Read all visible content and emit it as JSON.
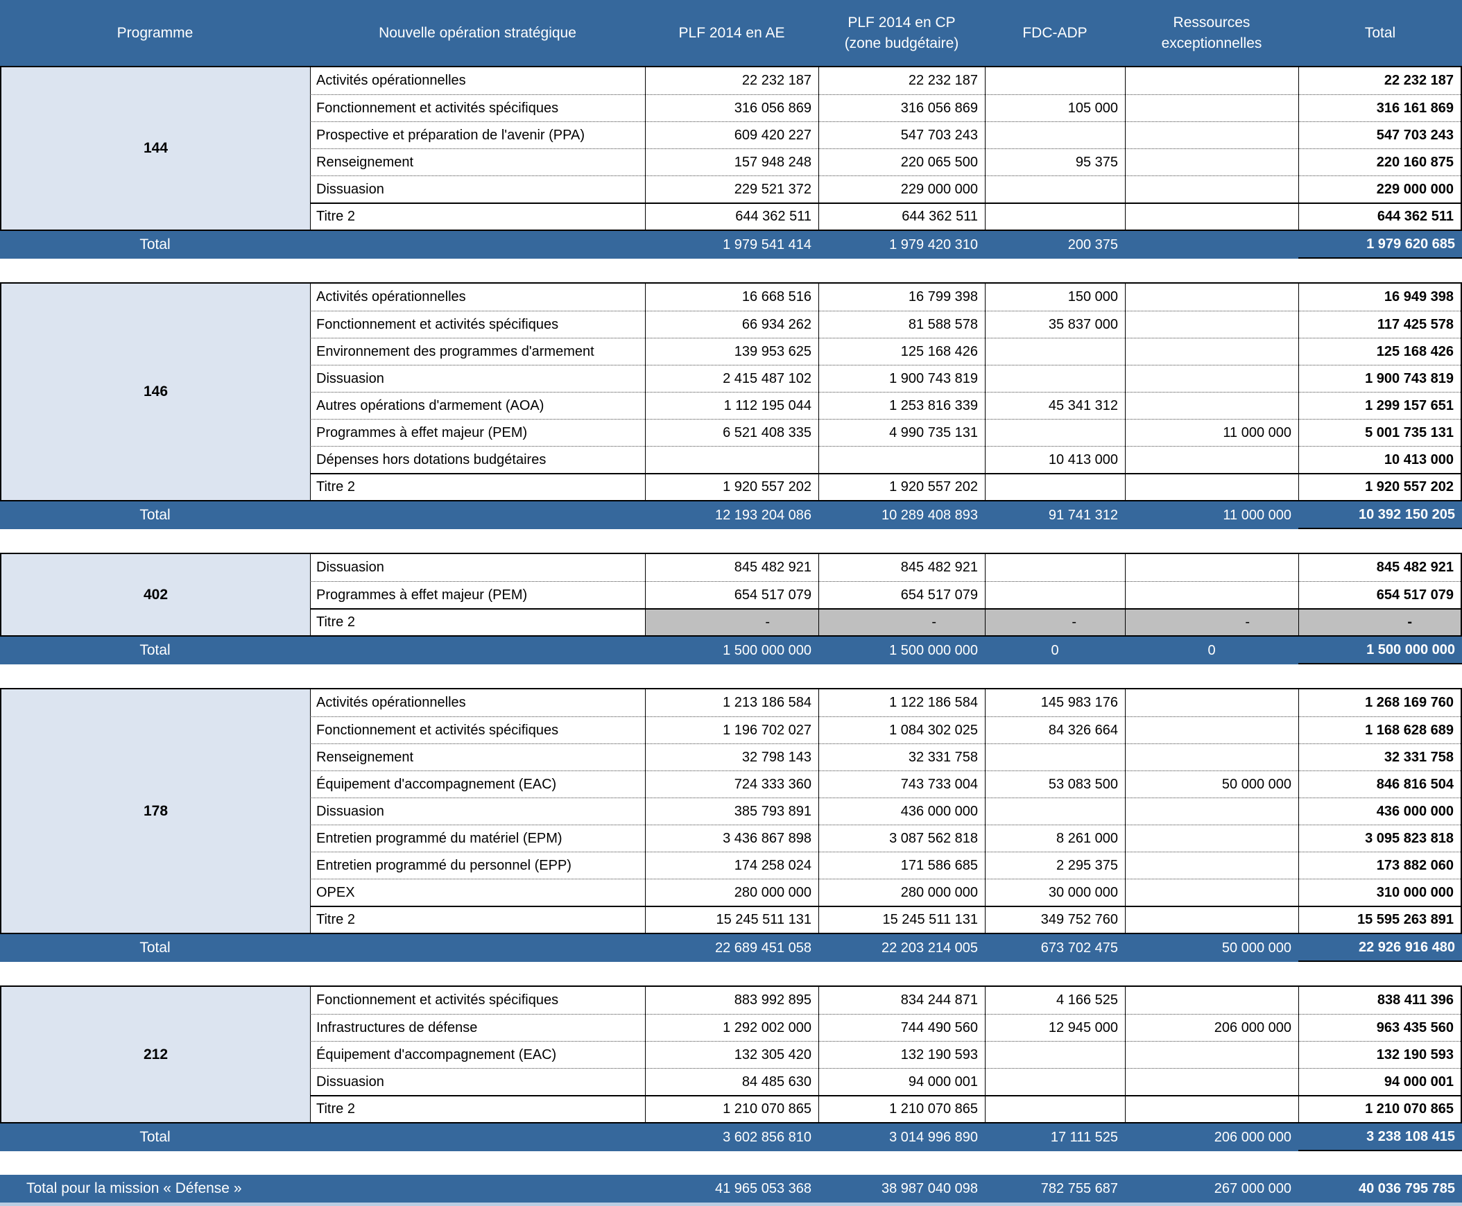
{
  "header": {
    "cols": [
      "Programme",
      "Nouvelle opération stratégique",
      "PLF 2014 en AE",
      "PLF 2014 en CP\n(zone budgétaire)",
      "FDC-ADP",
      "Ressources\nexceptionnelles",
      "Total"
    ]
  },
  "colors": {
    "header_blue": "#36689c",
    "total_bar_blue": "#36689c",
    "programme_cell": "#dce4f0",
    "disabled_gray": "#bfbfbf",
    "bottom_strip": "#b9cde2"
  },
  "sections": [
    {
      "programme": "144",
      "rows": [
        {
          "label": "Activités opérationnelles",
          "ae": "22 232 187",
          "cp": "22 232 187",
          "fdc": "",
          "res": "",
          "total": "22 232 187"
        },
        {
          "label": "Fonctionnement et activités spécifiques",
          "ae": "316 056 869",
          "cp": "316 056 869",
          "fdc": "105 000",
          "res": "",
          "total": "316 161 869"
        },
        {
          "label": "Prospective et préparation de l'avenir (PPA)",
          "ae": "609 420 227",
          "cp": "547 703 243",
          "fdc": "",
          "res": "",
          "total": "547 703 243"
        },
        {
          "label": "Renseignement",
          "ae": "157 948 248",
          "cp": "220 065 500",
          "fdc": "95 375",
          "res": "",
          "total": "220 160 875"
        },
        {
          "label": "Dissuasion",
          "ae": "229 521 372",
          "cp": "229 000 000",
          "fdc": "",
          "res": "",
          "total": "229 000 000"
        },
        {
          "label": "Titre 2",
          "ae": "644 362 511",
          "cp": "644 362 511",
          "fdc": "",
          "res": "",
          "total": "644 362 511",
          "thick_top": true
        }
      ],
      "total": {
        "label": "Total",
        "ae": "1 979 541 414",
        "cp": "1 979 420 310",
        "fdc": "200 375",
        "res": "",
        "total": "1 979 620 685"
      }
    },
    {
      "programme": "146",
      "rows": [
        {
          "label": "Activités opérationnelles",
          "ae": "16 668 516",
          "cp": "16 799 398",
          "fdc": "150 000",
          "res": "",
          "total": "16 949 398"
        },
        {
          "label": "Fonctionnement et activités spécifiques",
          "ae": "66 934 262",
          "cp": "81 588 578",
          "fdc": "35 837 000",
          "res": "",
          "total": "117 425 578"
        },
        {
          "label": "Environnement des programmes d'armement",
          "ae": "139 953 625",
          "cp": "125 168 426",
          "fdc": "",
          "res": "",
          "total": "125 168 426"
        },
        {
          "label": "Dissuasion",
          "ae": "2 415 487 102",
          "cp": "1 900 743 819",
          "fdc": "",
          "res": "",
          "total": "1 900 743 819"
        },
        {
          "label": "Autres opérations d'armement (AOA)",
          "ae": "1 112 195 044",
          "cp": "1 253 816 339",
          "fdc": "45 341 312",
          "res": "",
          "total": "1 299 157 651"
        },
        {
          "label": "Programmes à effet majeur (PEM)",
          "ae": "6 521 408 335",
          "cp": "4 990 735 131",
          "fdc": "",
          "res": "11 000 000",
          "total": "5 001 735 131"
        },
        {
          "label": "Dépenses hors dotations budgétaires",
          "ae": "",
          "cp": "",
          "fdc": "10 413 000",
          "res": "",
          "total": "10 413 000"
        },
        {
          "label": "Titre 2",
          "ae": "1 920 557 202",
          "cp": "1 920 557 202",
          "fdc": "",
          "res": "",
          "total": "1 920 557 202",
          "thick_top": true
        }
      ],
      "total": {
        "label": "Total",
        "ae": "12 193 204 086",
        "cp": "10 289 408 893",
        "fdc": "91 741 312",
        "res": "11 000 000",
        "total": "10 392 150 205"
      }
    },
    {
      "programme": "402",
      "rows": [
        {
          "label": "Dissuasion",
          "ae": "845 482 921",
          "cp": "845 482 921",
          "fdc": "",
          "res": "",
          "total": "845 482 921"
        },
        {
          "label": "Programmes à effet majeur (PEM)",
          "ae": "654 517 079",
          "cp": "654 517 079",
          "fdc": "",
          "res": "",
          "total": "654 517 079"
        },
        {
          "label": "Titre 2",
          "ae": "-",
          "cp": "-",
          "fdc": "-",
          "res": "-",
          "total": "-",
          "thick_top": true,
          "gray": true
        }
      ],
      "total": {
        "label": "Total",
        "ae": "1 500 000 000",
        "cp": "1 500 000 000",
        "fdc": "0",
        "res": "0",
        "total": "1 500 000 000"
      }
    },
    {
      "programme": "178",
      "rows": [
        {
          "label": "Activités opérationnelles",
          "ae": "1 213 186 584",
          "cp": "1 122 186 584",
          "fdc": "145 983 176",
          "res": "",
          "total": "1 268 169 760"
        },
        {
          "label": "Fonctionnement et activités spécifiques",
          "ae": "1 196 702 027",
          "cp": "1 084 302 025",
          "fdc": "84 326 664",
          "res": "",
          "total": "1 168 628 689"
        },
        {
          "label": "Renseignement",
          "ae": "32 798 143",
          "cp": "32 331 758",
          "fdc": "",
          "res": "",
          "total": "32 331 758"
        },
        {
          "label": "Équipement d'accompagnement (EAC)",
          "ae": "724 333 360",
          "cp": "743 733 004",
          "fdc": "53 083 500",
          "res": "50 000 000",
          "total": "846 816 504"
        },
        {
          "label": "Dissuasion",
          "ae": "385 793 891",
          "cp": "436 000 000",
          "fdc": "",
          "res": "",
          "total": "436 000 000"
        },
        {
          "label": "Entretien programmé du matériel (EPM)",
          "ae": "3 436 867 898",
          "cp": "3 087 562 818",
          "fdc": "8 261 000",
          "res": "",
          "total": "3 095 823 818"
        },
        {
          "label": "Entretien programmé du personnel (EPP)",
          "ae": "174 258 024",
          "cp": "171 586 685",
          "fdc": "2 295 375",
          "res": "",
          "total": "173 882 060"
        },
        {
          "label": "OPEX",
          "ae": "280 000 000",
          "cp": "280 000 000",
          "fdc": "30 000 000",
          "res": "",
          "total": "310 000 000"
        },
        {
          "label": "Titre 2",
          "ae": "15 245 511 131",
          "cp": "15 245 511 131",
          "fdc": "349 752 760",
          "res": "",
          "total": "15 595 263 891",
          "thick_top": true
        }
      ],
      "total": {
        "label": "Total",
        "ae": "22 689 451 058",
        "cp": "22 203 214 005",
        "fdc": "673 702 475",
        "res": "50 000 000",
        "total": "22 926 916 480"
      }
    },
    {
      "programme": "212",
      "rows": [
        {
          "label": "Fonctionnement et activités spécifiques",
          "ae": "883 992 895",
          "cp": "834 244 871",
          "fdc": "4 166 525",
          "res": "",
          "total": "838 411 396"
        },
        {
          "label": "Infrastructures de défense",
          "ae": "1 292 002 000",
          "cp": "744 490 560",
          "fdc": "12 945 000",
          "res": "206 000 000",
          "total": "963 435 560"
        },
        {
          "label": "Équipement d'accompagnement (EAC)",
          "ae": "132 305 420",
          "cp": "132 190 593",
          "fdc": "",
          "res": "",
          "total": "132 190 593"
        },
        {
          "label": "Dissuasion",
          "ae": "84 485 630",
          "cp": "94 000 001",
          "fdc": "",
          "res": "",
          "total": "94 000 001"
        },
        {
          "label": "Titre 2",
          "ae": "1 210 070 865",
          "cp": "1 210 070 865",
          "fdc": "",
          "res": "",
          "total": "1 210 070 865",
          "thick_top": true
        }
      ],
      "total": {
        "label": "Total",
        "ae": "3 602 856 810",
        "cp": "3 014 996 890",
        "fdc": "17 111 525",
        "res": "206 000 000",
        "total": "3 238 108 415"
      }
    }
  ],
  "grand_total": {
    "label": "Total pour la mission « Défense »",
    "ae": "41 965 053 368",
    "cp": "38 987 040 098",
    "fdc": "782 755 687",
    "res": "267 000 000",
    "total": "40 036 795 785"
  }
}
